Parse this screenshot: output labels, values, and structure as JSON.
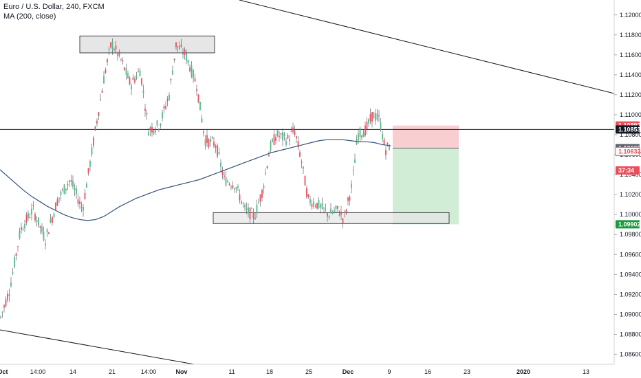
{
  "header": {
    "symbol_line": "Euro / U.S. Dollar, 240, FXCM",
    "indicator_line": "MA (200, close)"
  },
  "chart_data": {
    "type": "candlestick",
    "y_axis": {
      "min": 1.085,
      "max": 1.1215,
      "tick_labels": [
        "1.12000",
        "1.11800",
        "1.11600",
        "1.11400",
        "1.11200",
        "1.11000",
        "1.10800",
        "1.10600",
        "1.10400",
        "1.10200",
        "1.10000",
        "1.09800",
        "1.09600",
        "1.09400",
        "1.09200",
        "1.09000",
        "1.08800",
        "1.08600"
      ],
      "tick_values": [
        1.12,
        1.118,
        1.116,
        1.114,
        1.112,
        1.11,
        1.108,
        1.106,
        1.104,
        1.102,
        1.1,
        1.098,
        1.096,
        1.094,
        1.092,
        1.09,
        1.088,
        1.086
      ]
    },
    "x_axis": {
      "tick_labels": [
        "Oct",
        "14:00",
        "14",
        "21",
        "14:00",
        "Nov",
        "11",
        "18",
        "25",
        "Dec",
        "9",
        "16",
        "23",
        "2020",
        "13"
      ],
      "tick_bold": [
        "Oct",
        "Nov",
        "Dec",
        "2020"
      ]
    },
    "colors": {
      "up": "#53b987",
      "down": "#eb4d5c",
      "ma": "#33507d",
      "zone_fill": "#e6e6e6",
      "zone_border": "#131722",
      "stop_fill": "#f7c6c8",
      "target_fill": "#cdebd0",
      "trend_line": "#131722",
      "price_line": "#131722"
    },
    "price_tags": [
      {
        "label": "1.10892",
        "value": 1.10892,
        "bg": "#eb4d5c",
        "fg": "#ffffff"
      },
      {
        "label": "1.10853",
        "value": 1.10853,
        "bg": "#131722",
        "fg": "#ffffff"
      },
      {
        "label": "1.10665",
        "value": 1.10665,
        "bg": "#5d606b",
        "fg": "#ffffff"
      },
      {
        "label": "1.10632",
        "value": 1.10632,
        "bg": "#ffffff",
        "fg": "#eb4d5c",
        "border": "#eb4d5c"
      },
      {
        "label": "37:34",
        "value": 1.10442,
        "bg": "#eb4d5c",
        "fg": "#ffffff"
      },
      {
        "label": "1.09902",
        "value": 1.09902,
        "bg": "#1a9a3c",
        "fg": "#ffffff"
      }
    ],
    "horizontal_line": 1.10853,
    "supply_zone": {
      "low": 1.1162,
      "high": 1.1179
    },
    "demand_zone": {
      "low": 1.0991,
      "high": 1.1002
    },
    "position": {
      "entry": 1.10665,
      "stop": 1.10892,
      "target": 1.09902
    },
    "series": {
      "ma200": [
        1.1045,
        1.1038,
        1.1031,
        1.1024,
        1.1018,
        1.1013,
        1.1008,
        1.1004,
        1.1,
        1.0997,
        1.0995,
        1.0994,
        1.0995,
        1.0998,
        1.1003,
        1.1008,
        1.1012,
        1.1016,
        1.1019,
        1.1022,
        1.1025,
        1.1027,
        1.1029,
        1.1031,
        1.1033,
        1.1035,
        1.1038,
        1.1041,
        1.1044,
        1.1047,
        1.105,
        1.1053,
        1.1056,
        1.1059,
        1.1062,
        1.1064,
        1.1066,
        1.1068,
        1.107,
        1.1072,
        1.1074,
        1.1075,
        1.1075,
        1.1075,
        1.1074,
        1.1073,
        1.1073,
        1.1072,
        1.107,
        1.1069
      ]
    }
  }
}
